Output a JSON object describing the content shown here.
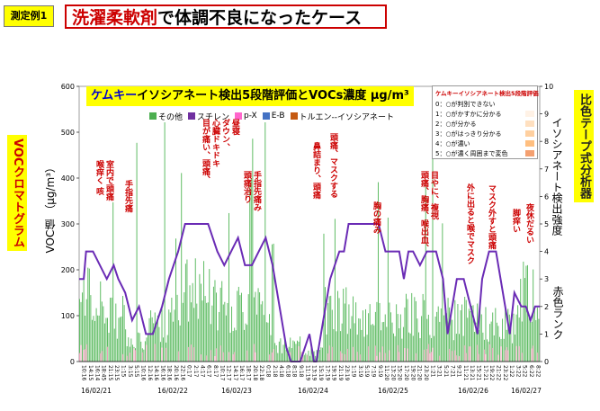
{
  "case_tag": "測定例1",
  "title_red": "洗濯柔軟剤",
  "title_black": "で体調不良になったケース",
  "left_label": "VOCクロマトグラム",
  "right_label": "比色テープ式分析器",
  "yleft_label": "VOC値 （μg/m³）",
  "yright_label": "イソシアネート検出強度",
  "rank_label": "赤色ランク",
  "chart_title_blue": "ケムキー",
  "chart_title_black": "イソシアネート検出5段階評価とVOCs濃度 μg/m³",
  "legend": [
    {
      "label": "その他",
      "color": "#4caf50"
    },
    {
      "label": "スチレン",
      "color": "#7030a0"
    },
    {
      "label": "p-X",
      "color": "#ff66cc"
    },
    {
      "label": "E-B",
      "color": "#4472c4"
    },
    {
      "label": "トルエン--イソシアネート",
      "color": "#c55a11"
    }
  ],
  "scale_title": "ケムキーイソシアネート検出5段階評価",
  "scale_items": [
    {
      "label": "0：○が判別できない",
      "color": "#ffffff"
    },
    {
      "label": "1：○がかすかに分かる",
      "color": "#fff2e6"
    },
    {
      "label": "2：○が分かる",
      "color": "#ffe0c0"
    },
    {
      "label": "3：○がはっきり分かる",
      "color": "#ffd0a0"
    },
    {
      "label": "4：○が濃い",
      "color": "#ffbf80"
    },
    {
      "label": "5：○が濃く周囲まで変色",
      "color": "#f4a070"
    }
  ],
  "annotations": [
    {
      "text": "室内で頭痛\n喉痒く 咳",
      "x": 104,
      "y": 178
    },
    {
      "text": "手指先痛",
      "x": 136,
      "y": 200
    },
    {
      "text": "昼寝\nダウン、\n心臓ドキドキ\n目が痛い、頭痛、",
      "x": 222,
      "y": 132
    },
    {
      "text": "手指先痛み\n頭痛治り",
      "x": 268,
      "y": 190
    },
    {
      "text": "鼻詰まり、頭痛",
      "x": 345,
      "y": 158
    },
    {
      "text": "頭痛、マスクする",
      "x": 364,
      "y": 148
    },
    {
      "text": "胸の痛み",
      "x": 412,
      "y": 224
    },
    {
      "text": "目やに、複視\n頭痛、胸痛、喉出血、",
      "x": 465,
      "y": 190
    },
    {
      "text": "外に出ると喉でマスク",
      "x": 516,
      "y": 204
    },
    {
      "text": "マスク外すと頭痛",
      "x": 540,
      "y": 205
    },
    {
      "text": "脚痒い",
      "x": 567,
      "y": 232
    },
    {
      "text": "夜休だるい",
      "x": 582,
      "y": 226
    }
  ],
  "dates": [
    {
      "text": "16/02/21",
      "x": 107
    },
    {
      "text": "16/02/22",
      "x": 192
    },
    {
      "text": "16/02/23",
      "x": 263
    },
    {
      "text": "16/02/24",
      "x": 348
    },
    {
      "text": "16/02/25",
      "x": 437
    },
    {
      "text": "16/02/26",
      "x": 526
    },
    {
      "text": "16/02/27",
      "x": 585
    }
  ],
  "chart_data": {
    "type": "bar",
    "title": "ケムキーイソシアネート検出5段階評価とVOCs濃度 μg/m³",
    "ylabel": "VOC値 （μg/m³）",
    "y2label": "イソシアネート検出強度",
    "ylim": [
      0,
      600
    ],
    "y2lim": [
      0,
      10
    ],
    "yticks": [
      0,
      100,
      200,
      300,
      400,
      500,
      600
    ],
    "y2ticks": [
      0,
      1,
      2,
      3,
      4,
      5,
      6,
      7,
      8,
      9,
      10
    ],
    "x_tick_labels": [
      "10:16",
      "14:15",
      "16:14",
      "18:45",
      "21:15",
      "23:15",
      "1:15",
      "3:15",
      "5:15",
      "10:16",
      "12:16",
      "14:16",
      "16:16",
      "18:16",
      "20:16",
      "22:16",
      "0:17",
      "2:17",
      "4:17",
      "6:17",
      "8:17",
      "10:17",
      "12:17",
      "14:17",
      "16:17",
      "18:17",
      "20:18",
      "22:18",
      "0:18",
      "2:18",
      "4:18",
      "6:18",
      "8:18",
      "9:18",
      "11:19",
      "13:19",
      "15:19",
      "17:19",
      "19:19",
      "21:19",
      "23:19",
      "1:19",
      "3:19",
      "5:19",
      "7:19",
      "9:19",
      "11:20",
      "13:20",
      "15:20",
      "17:20",
      "19:20",
      "21:20",
      "23:20",
      "1:21",
      "3:21",
      "5:21",
      "7:21",
      "9:21",
      "11:21",
      "13:21",
      "15:21",
      "17:21",
      "19:22",
      "21:22",
      "23:22",
      "1:22",
      "3:22",
      "5:22",
      "6:22",
      "8:22"
    ],
    "isocyanate_points": [
      [
        0,
        3
      ],
      [
        0.01,
        3
      ],
      [
        0.015,
        4
      ],
      [
        0.03,
        4
      ],
      [
        0.06,
        3
      ],
      [
        0.075,
        3.5
      ],
      [
        0.085,
        3
      ],
      [
        0.1,
        2.5
      ],
      [
        0.115,
        1.5
      ],
      [
        0.13,
        2
      ],
      [
        0.145,
        1
      ],
      [
        0.16,
        1
      ],
      [
        0.18,
        2
      ],
      [
        0.195,
        3
      ],
      [
        0.215,
        4
      ],
      [
        0.23,
        5
      ],
      [
        0.28,
        5
      ],
      [
        0.3,
        4
      ],
      [
        0.315,
        3.5
      ],
      [
        0.33,
        4
      ],
      [
        0.345,
        4.5
      ],
      [
        0.36,
        3.5
      ],
      [
        0.375,
        3.5
      ],
      [
        0.39,
        4
      ],
      [
        0.405,
        4.5
      ],
      [
        0.42,
        3.5
      ],
      [
        0.435,
        2
      ],
      [
        0.45,
        0.5
      ],
      [
        0.46,
        0
      ],
      [
        0.48,
        0
      ],
      [
        0.5,
        1
      ],
      [
        0.51,
        0
      ],
      [
        0.515,
        0
      ],
      [
        0.525,
        1
      ],
      [
        0.545,
        3
      ],
      [
        0.565,
        4
      ],
      [
        0.575,
        4
      ],
      [
        0.585,
        5
      ],
      [
        0.65,
        5
      ],
      [
        0.665,
        4
      ],
      [
        0.695,
        4
      ],
      [
        0.705,
        3
      ],
      [
        0.715,
        4
      ],
      [
        0.725,
        4
      ],
      [
        0.74,
        3.5
      ],
      [
        0.755,
        4
      ],
      [
        0.775,
        4
      ],
      [
        0.79,
        3
      ],
      [
        0.8,
        1
      ],
      [
        0.81,
        2
      ],
      [
        0.82,
        3
      ],
      [
        0.835,
        3
      ],
      [
        0.85,
        2
      ],
      [
        0.865,
        1
      ],
      [
        0.875,
        3
      ],
      [
        0.89,
        4
      ],
      [
        0.905,
        4
      ],
      [
        0.915,
        3
      ],
      [
        0.93,
        1.5
      ],
      [
        0.935,
        1
      ],
      [
        0.945,
        2.5
      ],
      [
        0.96,
        2
      ],
      [
        0.97,
        2
      ],
      [
        0.98,
        1.5
      ],
      [
        0.99,
        2
      ],
      [
        1.0,
        2
      ]
    ],
    "voc_bars_note": "Dense bars (total VOC, mostly 'その他'), peaks around 100-300 μg/m³ with occasional spikes to ~550."
  }
}
